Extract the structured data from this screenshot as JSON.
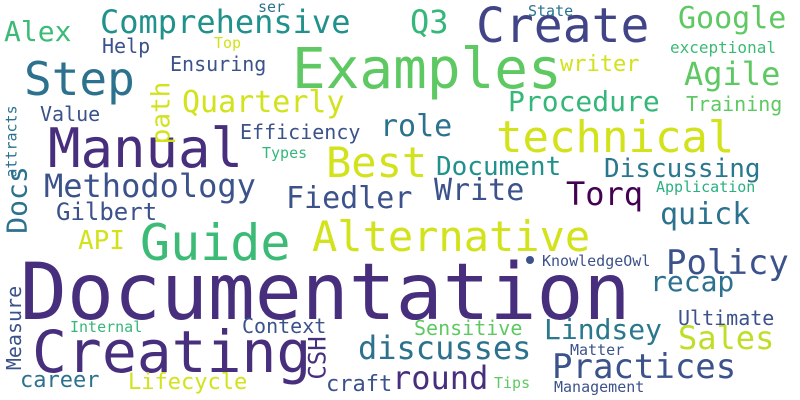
{
  "words": [
    {
      "text": "Documentation",
      "color": "#472f7d"
    },
    {
      "text": "Creating",
      "color": "#472f7d"
    },
    {
      "text": "Examples",
      "color": "#5ec962"
    },
    {
      "text": "Manual",
      "color": "#472f7d"
    },
    {
      "text": "Guide",
      "color": "#3bbb75"
    },
    {
      "text": "Create",
      "color": "#414487"
    },
    {
      "text": "technical",
      "color": "#d2e21b"
    },
    {
      "text": "Alternative",
      "color": "#d2e21b"
    },
    {
      "text": "Step",
      "color": "#2c728e"
    },
    {
      "text": "Best",
      "color": "#d2e21b"
    },
    {
      "text": "Comprehensive",
      "color": "#21918c"
    },
    {
      "text": "Methodology",
      "color": "#3b528b"
    },
    {
      "text": "Practices",
      "color": "#3b528b"
    },
    {
      "text": "discusses",
      "color": "#2c728e"
    },
    {
      "text": "Procedure",
      "color": "#35b779"
    },
    {
      "text": "Policy",
      "color": "#3b528b"
    },
    {
      "text": "Google",
      "color": "#5ec962"
    },
    {
      "text": "Agile",
      "color": "#5ec962"
    },
    {
      "text": "Quarterly",
      "color": "#d2e21b"
    },
    {
      "text": "Fiedler",
      "color": "#3b528b"
    },
    {
      "text": "Torq",
      "color": "#440154"
    },
    {
      "text": "Write",
      "color": "#3b528b"
    },
    {
      "text": "Document",
      "color": "#21918c"
    },
    {
      "text": "Discussing",
      "color": "#2a788e"
    },
    {
      "text": "quick",
      "color": "#2c728e"
    },
    {
      "text": "role",
      "color": "#2c728e"
    },
    {
      "text": "round",
      "color": "#472f7d"
    },
    {
      "text": "Sales",
      "color": "#bddf26"
    },
    {
      "text": "recap",
      "color": "#2c728e"
    },
    {
      "text": "Lindsey",
      "color": "#2a788e"
    },
    {
      "text": "Alex",
      "color": "#3bbb75"
    },
    {
      "text": "Q3",
      "color": "#35b779"
    },
    {
      "text": "Gilbert",
      "color": "#3b528b"
    },
    {
      "text": "Efficiency",
      "color": "#3b528b"
    },
    {
      "text": "Docs",
      "color": "#2c728e"
    },
    {
      "text": "API",
      "color": "#d2e21b"
    },
    {
      "text": "path",
      "color": "#d2e21b"
    },
    {
      "text": "CSH",
      "color": "#472f7d"
    },
    {
      "text": "Measure",
      "color": "#3b528b"
    },
    {
      "text": "career",
      "color": "#2c728e"
    },
    {
      "text": "Lifecycle",
      "color": "#d2e21b"
    },
    {
      "text": "craft",
      "color": "#3b528b"
    },
    {
      "text": "Sensitive",
      "color": "#5ec962"
    },
    {
      "text": "Context",
      "color": "#3b528b"
    },
    {
      "text": "Ultimate",
      "color": "#3b528b"
    },
    {
      "text": "writer",
      "color": "#d2e21b"
    },
    {
      "text": "Ensuring",
      "color": "#3b528b"
    },
    {
      "text": "Help",
      "color": "#3b528b"
    },
    {
      "text": "Value",
      "color": "#3b528b"
    },
    {
      "text": "Training",
      "color": "#5ec962"
    },
    {
      "text": "exceptional",
      "color": "#3bbb75"
    },
    {
      "text": "Application",
      "color": "#2ab07f"
    },
    {
      "text": "KnowledgeOwl",
      "color": "#3b528b"
    },
    {
      "text": "Types",
      "color": "#35b779"
    },
    {
      "text": "Internal",
      "color": "#35b779"
    },
    {
      "text": "Matter",
      "color": "#3b528b"
    },
    {
      "text": "Management",
      "color": "#3b528b"
    },
    {
      "text": "Tips",
      "color": "#5ec962"
    },
    {
      "text": "State",
      "color": "#2c728e"
    },
    {
      "text": "Top",
      "color": "#d2e21b"
    },
    {
      "text": "ser",
      "color": "#2c728e"
    },
    {
      "text": "attracts",
      "color": "#2c728e"
    }
  ]
}
